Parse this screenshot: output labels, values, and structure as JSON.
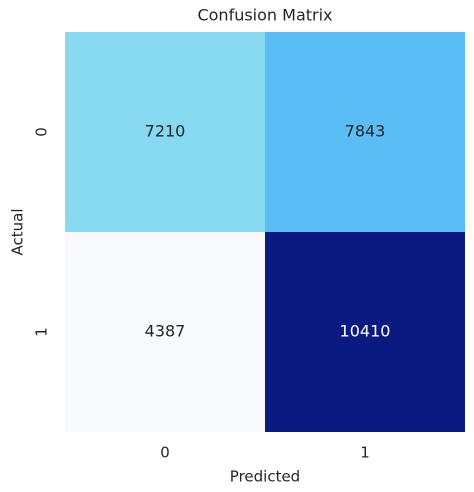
{
  "chart_data": {
    "type": "heatmap",
    "title": "Confusion Matrix",
    "x_label": "Predicted",
    "y_label": "Actual",
    "x_categories": [
      "0",
      "1"
    ],
    "y_categories": [
      "0",
      "1"
    ],
    "values": [
      [
        7210,
        7843
      ],
      [
        4387,
        10410
      ]
    ],
    "colors": [
      [
        "#87d8f1",
        "#5bbdf5"
      ],
      [
        "#f8f9fd",
        "#0b1a80"
      ]
    ]
  }
}
